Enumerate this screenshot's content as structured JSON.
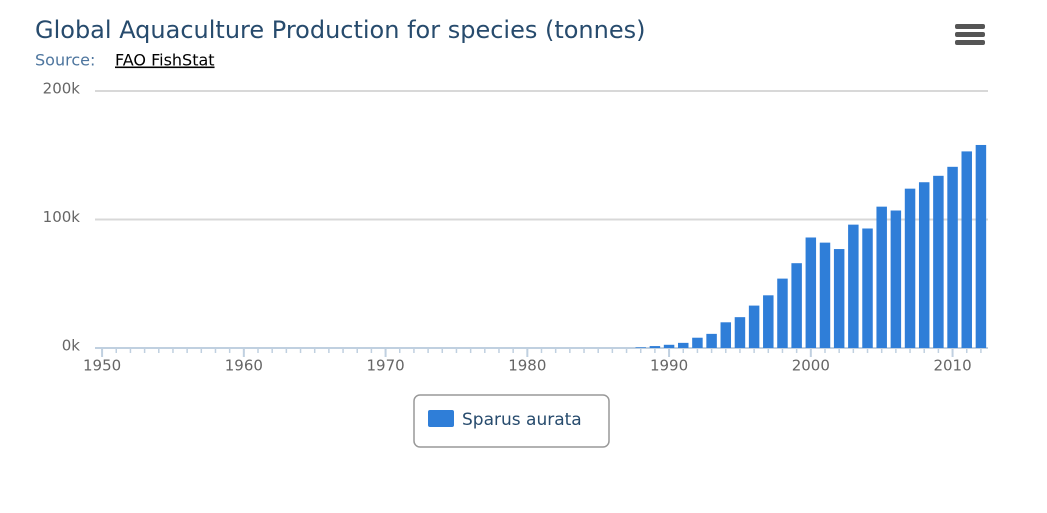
{
  "chart_data": {
    "type": "bar",
    "title": "Global Aquaculture Production for species (tonnes)",
    "subtitle": {
      "prefix": "Source:",
      "link": "FAO FishStat"
    },
    "x": [
      1950,
      1951,
      1952,
      1953,
      1954,
      1955,
      1956,
      1957,
      1958,
      1959,
      1960,
      1961,
      1962,
      1963,
      1964,
      1965,
      1966,
      1967,
      1968,
      1969,
      1970,
      1971,
      1972,
      1973,
      1974,
      1975,
      1976,
      1977,
      1978,
      1979,
      1980,
      1981,
      1982,
      1983,
      1984,
      1985,
      1986,
      1987,
      1988,
      1989,
      1990,
      1991,
      1992,
      1993,
      1994,
      1995,
      1996,
      1997,
      1998,
      1999,
      2000,
      2001,
      2002,
      2003,
      2004,
      2005,
      2006,
      2007,
      2008,
      2009,
      2010,
      2011,
      2012
    ],
    "series": [
      {
        "name": "Sparus aurata",
        "color": "#2f7ed8",
        "values": [
          0,
          0,
          0,
          0,
          0,
          0,
          0,
          0,
          0,
          0,
          0,
          0,
          0,
          0,
          0,
          0,
          0,
          0,
          0,
          0,
          0,
          0,
          0,
          0,
          0,
          0,
          0,
          0,
          0,
          0,
          0,
          0,
          0,
          0,
          0,
          0,
          0,
          0,
          500,
          1500,
          2500,
          4000,
          8000,
          11000,
          20000,
          24000,
          33000,
          41000,
          54000,
          66000,
          86000,
          82000,
          77000,
          96000,
          93000,
          110000,
          107000,
          124000,
          129000,
          134000,
          141000,
          153000,
          158000
        ]
      }
    ],
    "xlim": [
      1949.5,
      2012.5
    ],
    "xticks": [
      1950,
      1960,
      1970,
      1980,
      1990,
      2000,
      2010
    ],
    "ylim": [
      0,
      200000
    ],
    "yticks": [
      {
        "value": 0,
        "label": "0k"
      },
      {
        "value": 100000,
        "label": "100k"
      },
      {
        "value": 200000,
        "label": "200k"
      }
    ],
    "grid": true
  }
}
